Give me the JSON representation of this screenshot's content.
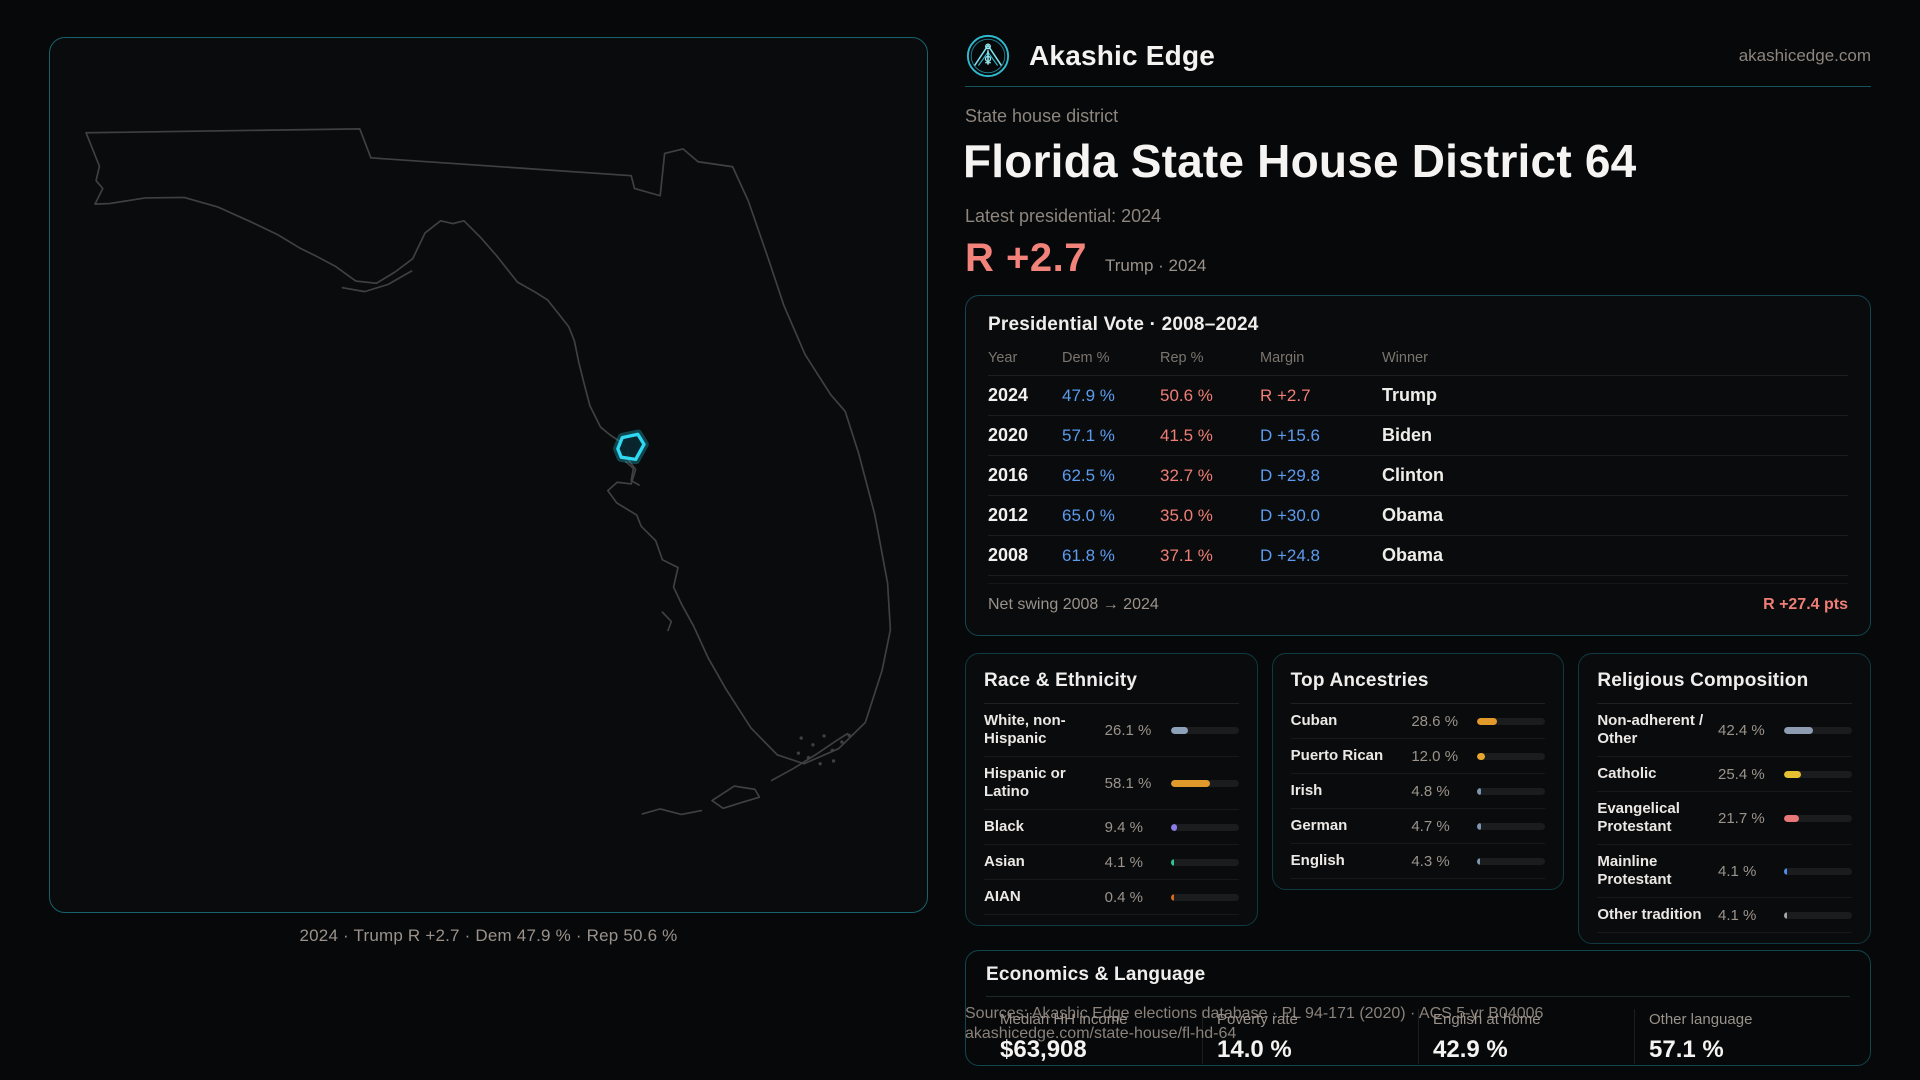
{
  "brand": {
    "name": "Akashic Edge",
    "domain": "akashicedge.com"
  },
  "colors": {
    "dem_blue": "#5b9bf0",
    "rep_red": "#ef7e76",
    "accent_cyan": "#2fd9f2",
    "panel_border_teal": "#124651"
  },
  "page": {
    "kicker": "State house district",
    "title": "Florida State House District 64",
    "latest_label": "Latest presidential: 2024",
    "headline_margin": "R +2.7",
    "headline_context": "Trump · 2024"
  },
  "map": {
    "caption": "2024 · Trump R +2.7 · Dem 47.9 % · Rep 50.6 %",
    "highlight_name": "district-64"
  },
  "presidential_table": {
    "title": "Presidential Vote · 2008–2024",
    "columns": [
      "Year",
      "Dem %",
      "Rep %",
      "Margin",
      "Winner"
    ],
    "rows": [
      {
        "year": "2024",
        "dem": "47.9 %",
        "rep": "50.6 %",
        "margin": "R +2.7",
        "party": "R",
        "winner": "Trump"
      },
      {
        "year": "2020",
        "dem": "57.1 %",
        "rep": "41.5 %",
        "margin": "D +15.6",
        "party": "D",
        "winner": "Biden"
      },
      {
        "year": "2016",
        "dem": "62.5 %",
        "rep": "32.7 %",
        "margin": "D +29.8",
        "party": "D",
        "winner": "Clinton"
      },
      {
        "year": "2012",
        "dem": "65.0 %",
        "rep": "35.0 %",
        "margin": "D +30.0",
        "party": "D",
        "winner": "Obama"
      },
      {
        "year": "2008",
        "dem": "61.8 %",
        "rep": "37.1 %",
        "margin": "D +24.8",
        "party": "D",
        "winner": "Obama"
      }
    ],
    "net_swing_label": "Net swing 2008 → 2024",
    "net_swing_value": "R +27.4 pts"
  },
  "demographics": [
    {
      "title": "Race & Ethnicity",
      "scale_max": 100,
      "rows": [
        {
          "label": "White, non-Hispanic",
          "value": "26.1 %",
          "pct": 26.1,
          "color": "#8da2b8"
        },
        {
          "label": "Hispanic or Latino",
          "value": "58.1 %",
          "pct": 58.1,
          "color": "#e2992b"
        },
        {
          "label": "Black",
          "value": "9.4 %",
          "pct": 9.4,
          "color": "#8d7bea"
        },
        {
          "label": "Asian",
          "value": "4.1 %",
          "pct": 4.1,
          "color": "#2fc98f"
        },
        {
          "label": "AIAN",
          "value": "0.4 %",
          "pct": 0.4,
          "color": "#d4691e"
        }
      ]
    },
    {
      "title": "Top Ancestries",
      "scale_max": 100,
      "rows": [
        {
          "label": "Cuban",
          "value": "28.6 %",
          "pct": 28.6,
          "color": "#e2992b"
        },
        {
          "label": "Puerto Rican",
          "value": "12.0 %",
          "pct": 12.0,
          "color": "#e8a62e"
        },
        {
          "label": "Irish",
          "value": "4.8 %",
          "pct": 4.8,
          "color": "#7e95b0"
        },
        {
          "label": "German",
          "value": "4.7 %",
          "pct": 4.7,
          "color": "#7e95b0"
        },
        {
          "label": "English",
          "value": "4.3 %",
          "pct": 4.3,
          "color": "#7e95b0"
        }
      ]
    },
    {
      "title": "Religious Composition",
      "scale_max": 100,
      "rows": [
        {
          "label": "Non-adherent / Other",
          "value": "42.4 %",
          "pct": 42.4,
          "color": "#8d9cb0"
        },
        {
          "label": "Catholic",
          "value": "25.4 %",
          "pct": 25.4,
          "color": "#e5c032"
        },
        {
          "label": "Evangelical Protestant",
          "value": "21.7 %",
          "pct": 21.7,
          "color": "#e87777"
        },
        {
          "label": "Mainline Protestant",
          "value": "4.1 %",
          "pct": 4.1,
          "color": "#4f8df0"
        },
        {
          "label": "Other tradition",
          "value": "4.1 %",
          "pct": 4.1,
          "color": "#9fa6ad"
        }
      ]
    }
  ],
  "economics": {
    "title": "Economics & Language",
    "stats": [
      {
        "label": "Median HH income",
        "value": "$63,908"
      },
      {
        "label": "Poverty rate",
        "value": "14.0 %"
      },
      {
        "label": "English at home",
        "value": "42.9 %"
      },
      {
        "label": "Other language",
        "value": "57.1 %"
      }
    ]
  },
  "footer": {
    "sources_line": "Sources: Akashic Edge elections database · PL 94-171 (2020) · ACS 5-yr B04006",
    "permalink": "akashicedge.com/state-house/fl-hd-64"
  }
}
